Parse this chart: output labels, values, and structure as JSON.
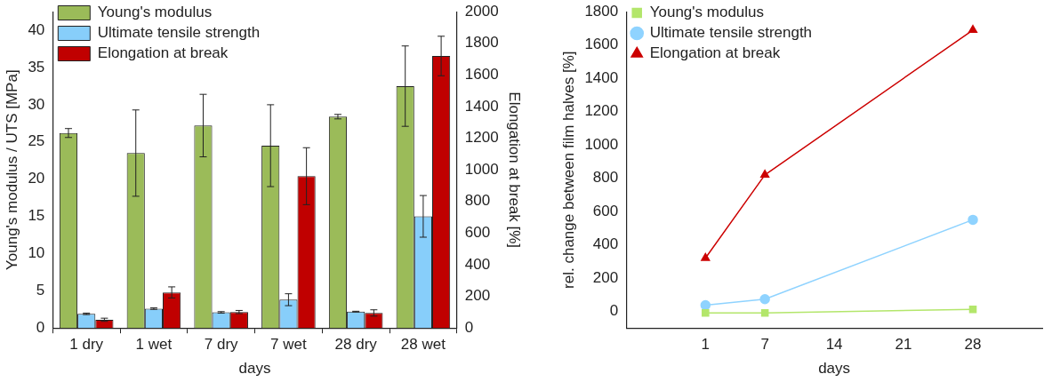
{
  "chart_data": [
    {
      "type": "bar",
      "xlabel": "days",
      "ylabel": "Young's modulus / UTS [MPa]",
      "y2label": "Elongation at break [%]",
      "categories": [
        "1 dry",
        "1 wet",
        "7 dry",
        "7 wet",
        "28 dry",
        "28 wet"
      ],
      "series": [
        {
          "name": "Young's modulus",
          "color": "#9bbb59",
          "values": [
            26.2,
            23.5,
            27.2,
            24.5,
            28.4,
            32.5
          ],
          "errors": [
            0.6,
            5.8,
            4.2,
            5.5,
            0.3,
            5.4
          ]
        },
        {
          "name": "Ultimate tensile strength",
          "color": "#87cefa",
          "values": [
            1.9,
            2.6,
            2.1,
            3.8,
            2.2,
            15
          ],
          "errors": [
            0.1,
            0.1,
            0.1,
            0.8,
            0.05,
            2.8
          ]
        },
        {
          "name": "Elongation at break",
          "color": "#c00000",
          "axis": "y2",
          "values": [
            52,
            225,
            101,
            960,
            95,
            1720
          ],
          "errors": [
            10,
            35,
            10,
            180,
            20,
            125
          ]
        }
      ],
      "ylim": [
        0,
        42.5
      ],
      "yticks": [
        0,
        5,
        10,
        15,
        20,
        25,
        30,
        35,
        40
      ],
      "y2lim": [
        0,
        2000
      ],
      "y2ticks": [
        0,
        200,
        400,
        600,
        800,
        1000,
        1200,
        1400,
        1600,
        1800,
        2000
      ],
      "legend": "top left"
    },
    {
      "type": "line",
      "xlabel": "days",
      "ylabel": "rel. change between film halves [%]",
      "x": [
        1,
        7,
        28
      ],
      "series": [
        {
          "name": "Young's modulus",
          "color": "#b3e66b",
          "marker": "square",
          "values": [
            -10,
            -10,
            12
          ]
        },
        {
          "name": "Ultimate tensile strength",
          "color": "#8fd3ff",
          "marker": "circle",
          "values": [
            37,
            73,
            550
          ]
        },
        {
          "name": "Elongation at break",
          "color": "#cc0000",
          "marker": "triangle",
          "values": [
            320,
            820,
            1690
          ]
        }
      ],
      "xlim": [
        -7,
        35
      ],
      "xticks": [
        1,
        7,
        14,
        21,
        28
      ],
      "ylim": [
        -100,
        1800
      ],
      "yticks": [
        0,
        200,
        400,
        600,
        800,
        1000,
        1200,
        1400,
        1600,
        1800
      ],
      "legend": "top left"
    }
  ]
}
